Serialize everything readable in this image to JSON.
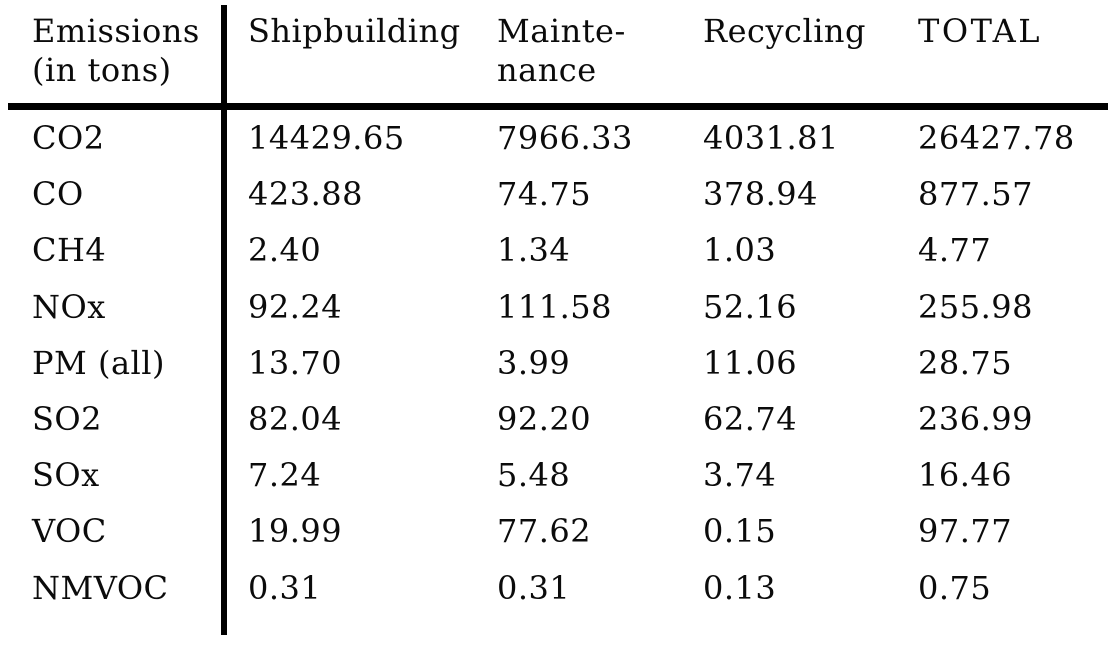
{
  "page": {
    "background_color": "#ffffff",
    "text_color": "#0b0b0b",
    "rule_color": "#000000"
  },
  "table": {
    "corner_header": {
      "line1": "Emissions",
      "line2": "(in tons)"
    },
    "column_headers": [
      {
        "line1": "Shipbuilding",
        "line2": ""
      },
      {
        "line1": "Mainte-",
        "line2": "nance"
      },
      {
        "line1": "Recycling",
        "line2": ""
      },
      {
        "line1": "TOTAL",
        "line2": ""
      }
    ],
    "rows": [
      {
        "label": "CO2",
        "values": [
          "14429.65",
          "7966.33",
          "4031.81",
          "26427.78"
        ]
      },
      {
        "label": "CO",
        "values": [
          "423.88",
          "74.75",
          "378.94",
          "877.57"
        ]
      },
      {
        "label": "CH4",
        "values": [
          "2.40",
          "1.34",
          "1.03",
          "4.77"
        ]
      },
      {
        "label": "NOx",
        "values": [
          "92.24",
          "111.58",
          "52.16",
          "255.98"
        ]
      },
      {
        "label": "PM (all)",
        "values": [
          "13.70",
          "3.99",
          "11.06",
          "28.75"
        ]
      },
      {
        "label": "SO2",
        "values": [
          "82.04",
          "92.20",
          "62.74",
          "236.99"
        ]
      },
      {
        "label": "SOx",
        "values": [
          "7.24",
          "5.48",
          "3.74",
          "16.46"
        ]
      },
      {
        "label": "VOC",
        "values": [
          "19.99",
          "77.62",
          "0.15",
          "97.77"
        ]
      },
      {
        "label": "NMVOC",
        "values": [
          "0.31",
          "0.31",
          "0.13",
          "0.75"
        ]
      }
    ]
  },
  "chart_data": {
    "type": "table",
    "title": "Emissions (in tons)",
    "columns": [
      "Emissions (in tons)",
      "Shipbuilding",
      "Maintenance",
      "Recycling",
      "TOTAL"
    ],
    "rows": [
      [
        "CO2",
        14429.65,
        7966.33,
        4031.81,
        26427.78
      ],
      [
        "CO",
        423.88,
        74.75,
        378.94,
        877.57
      ],
      [
        "CH4",
        2.4,
        1.34,
        1.03,
        4.77
      ],
      [
        "NOx",
        92.24,
        111.58,
        52.16,
        255.98
      ],
      [
        "PM (all)",
        13.7,
        3.99,
        11.06,
        28.75
      ],
      [
        "SO2",
        82.04,
        92.2,
        62.74,
        236.99
      ],
      [
        "SOx",
        7.24,
        5.48,
        3.74,
        16.46
      ],
      [
        "VOC",
        19.99,
        77.62,
        0.15,
        97.77
      ],
      [
        "NMVOC",
        0.31,
        0.31,
        0.13,
        0.75
      ]
    ]
  }
}
